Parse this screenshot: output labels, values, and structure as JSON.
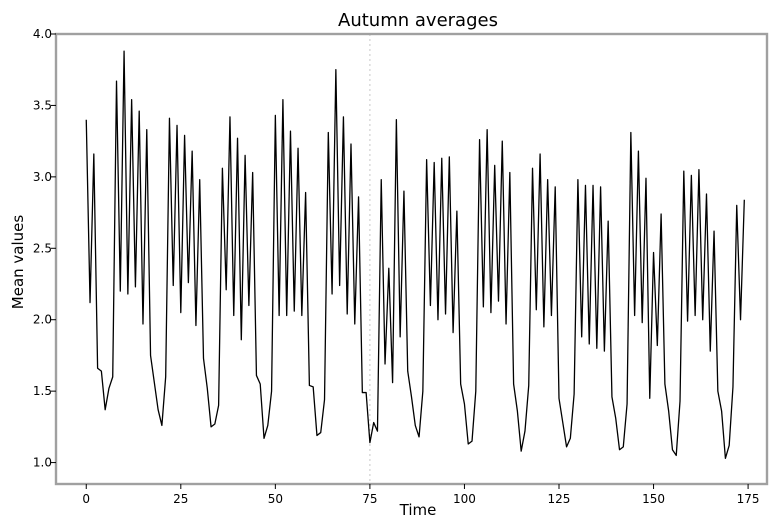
{
  "chart_data": {
    "type": "line",
    "title": "Autumn averages",
    "xlabel": "Time",
    "ylabel": "Mean values",
    "xlim": [
      -8,
      180
    ],
    "ylim": [
      0.85,
      4.0
    ],
    "xticks": [
      0,
      25,
      50,
      75,
      100,
      125,
      150,
      175
    ],
    "yticks": [
      1.0,
      1.5,
      2.0,
      2.5,
      3.0,
      3.5,
      4.0
    ],
    "ytick_labels": [
      "1.0",
      "1.5",
      "2.0",
      "2.5",
      "3.0",
      "3.5",
      "4.0"
    ],
    "grid": false,
    "reference_line_x": 75,
    "series": [
      {
        "color": "#000000",
        "values": [
          3.4,
          2.12,
          3.16,
          1.66,
          1.64,
          1.37,
          1.52,
          1.6,
          3.67,
          2.2,
          3.88,
          2.18,
          3.54,
          2.23,
          3.46,
          1.97,
          3.33,
          1.75,
          1.56,
          1.37,
          1.26,
          1.6,
          3.41,
          2.24,
          3.36,
          2.05,
          3.29,
          2.26,
          3.18,
          1.96,
          2.98,
          1.73,
          1.52,
          1.25,
          1.27,
          1.4,
          3.06,
          2.21,
          3.42,
          2.03,
          3.27,
          1.86,
          3.15,
          2.1,
          3.03,
          1.61,
          1.55,
          1.17,
          1.26,
          1.5,
          3.43,
          2.03,
          3.54,
          2.03,
          3.32,
          2.06,
          3.2,
          2.03,
          2.89,
          1.54,
          1.53,
          1.19,
          1.21,
          1.44,
          3.31,
          2.18,
          3.75,
          2.24,
          3.42,
          2.04,
          3.23,
          1.97,
          2.86,
          1.49,
          1.49,
          1.14,
          1.28,
          1.22,
          2.98,
          1.69,
          2.36,
          1.56,
          3.4,
          1.88,
          2.9,
          1.64,
          1.46,
          1.26,
          1.18,
          1.5,
          3.12,
          2.1,
          3.1,
          2.0,
          3.13,
          2.04,
          3.14,
          1.91,
          2.76,
          1.55,
          1.41,
          1.13,
          1.15,
          1.5,
          3.26,
          2.09,
          3.33,
          2.05,
          3.08,
          2.13,
          3.25,
          1.97,
          3.03,
          1.55,
          1.36,
          1.08,
          1.22,
          1.54,
          3.06,
          2.07,
          3.16,
          1.95,
          2.98,
          2.03,
          2.93,
          1.45,
          1.28,
          1.11,
          1.17,
          1.48,
          2.98,
          1.88,
          2.94,
          1.83,
          2.94,
          1.8,
          2.93,
          1.78,
          2.69,
          1.46,
          1.31,
          1.09,
          1.11,
          1.41,
          3.31,
          2.03,
          3.18,
          1.98,
          2.99,
          1.45,
          2.47,
          1.82,
          2.74,
          1.55,
          1.36,
          1.09,
          1.05,
          1.43,
          3.04,
          1.99,
          3.01,
          2.03,
          3.05,
          2.0,
          2.88,
          1.78,
          2.62,
          1.5,
          1.36,
          1.03,
          1.12,
          1.53,
          2.8,
          2.0,
          2.84
        ]
      }
    ]
  }
}
